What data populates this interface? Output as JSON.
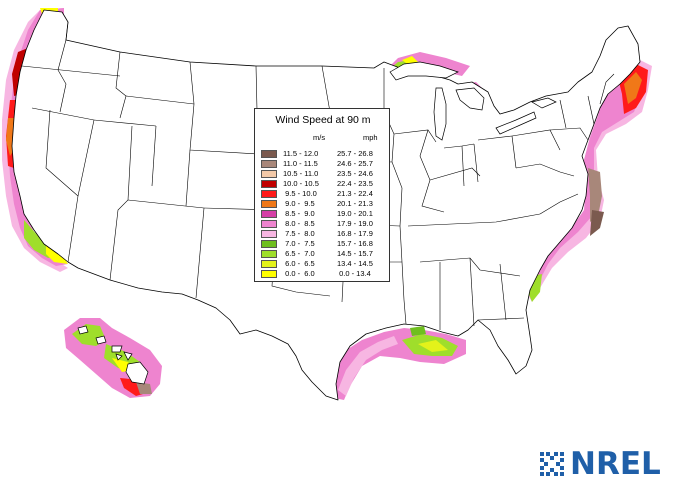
{
  "legend": {
    "title": "Wind Speed at 90 m",
    "unit_ms": "m/s",
    "unit_mph": "mph",
    "rows": [
      {
        "ms": "11.5 - 12.0",
        "mph": "25.7 - 26.8",
        "color": "#7b5a4f"
      },
      {
        "ms": "11.0 - 11.5",
        "mph": "24.6 - 25.7",
        "color": "#a8877a"
      },
      {
        "ms": "10.5 - 11.0",
        "mph": "23.5 - 24.6",
        "color": "#f3c9a8"
      },
      {
        "ms": "10.0 - 10.5",
        "mph": "22.4 - 23.5",
        "color": "#c00000"
      },
      {
        "ms": " 9.5 - 10.0",
        "mph": "21.3 - 22.4",
        "color": "#ff1a1a"
      },
      {
        "ms": " 9.0 -  9.5",
        "mph": "20.1 - 21.3",
        "color": "#f07818"
      },
      {
        "ms": " 8.5 -  9.0",
        "mph": "19.0 - 20.1",
        "color": "#d53fa6"
      },
      {
        "ms": " 8.0 -  8.5",
        "mph": "17.9 - 19.0",
        "color": "#ee84cf"
      },
      {
        "ms": " 7.5 -  8.0",
        "mph": "16.8 - 17.9",
        "color": "#f7b6e2"
      },
      {
        "ms": " 7.0 -  7.5",
        "mph": "15.7 - 16.8",
        "color": "#6fbf1f"
      },
      {
        "ms": " 6.5 -  7.0",
        "mph": "14.5 - 15.7",
        "color": "#9fde2b"
      },
      {
        "ms": " 6.0 -  6.5",
        "mph": "13.4 - 14.5",
        "color": "#e3f21a"
      },
      {
        "ms": " 0.0 -  6.0",
        "mph": " 0.0 - 13.4",
        "color": "#ffff00"
      }
    ]
  },
  "logo": {
    "text": "NREL",
    "color": "#1f5fa8",
    "icon": "nrel-grid-icon"
  },
  "map": {
    "subject": "United States offshore wind speed map",
    "base_color": "#ffffff",
    "border_color": "#000000"
  }
}
